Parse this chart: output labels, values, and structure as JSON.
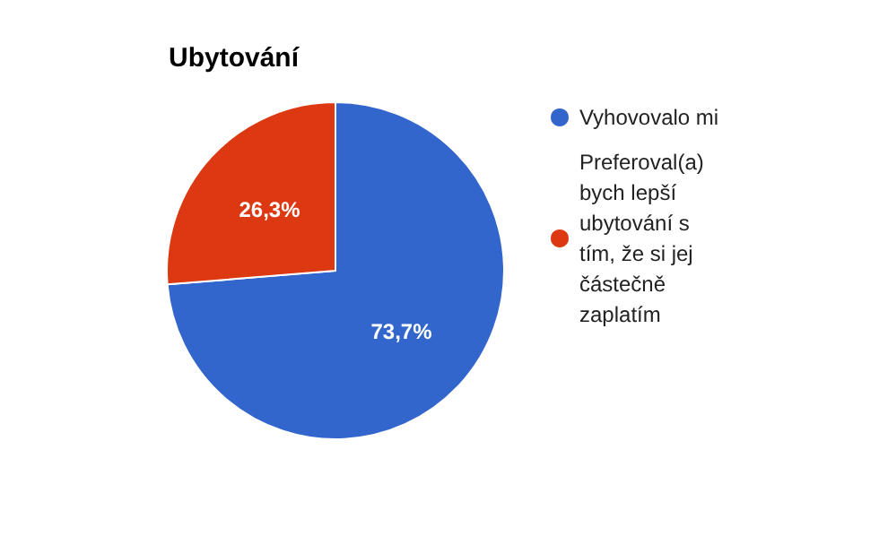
{
  "chart_data": {
    "type": "pie",
    "title": "Ubytování",
    "categories": [
      "Vyhovovalo mi",
      "Preferoval(a) bych lepší ubytování s tím, že si jej částečně zaplatím"
    ],
    "values": [
      73.7,
      26.3
    ],
    "colors": [
      "#3366cc",
      "#dc3912"
    ],
    "value_labels": [
      "73,7%",
      "26,3%"
    ],
    "legend": "top right"
  }
}
